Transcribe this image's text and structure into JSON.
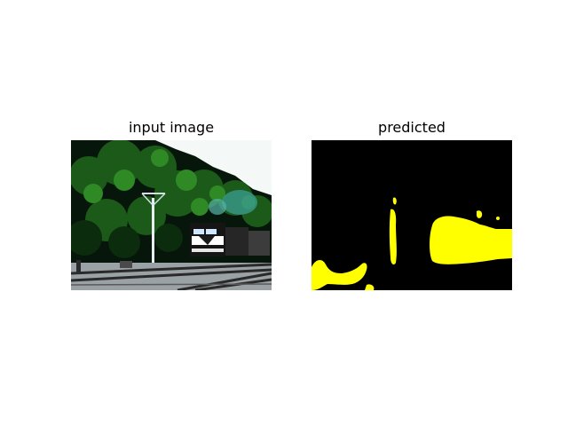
{
  "figure": {
    "left_panel": {
      "title": "input image",
      "content": "train on railway tracks with dense green trees"
    },
    "right_panel": {
      "title": "predicted",
      "mask_colors": {
        "background": "#000000",
        "foreground": "#ffff00"
      }
    }
  }
}
